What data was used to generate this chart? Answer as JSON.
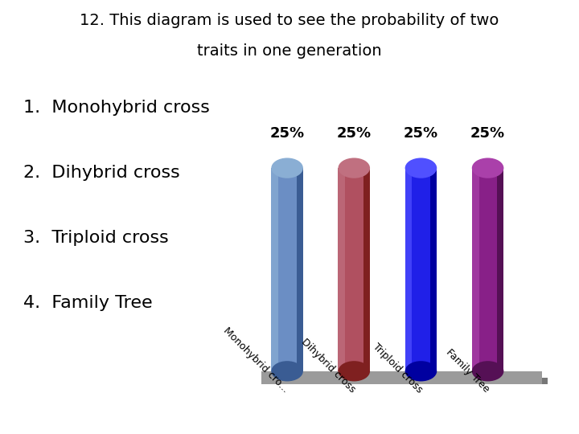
{
  "title_line1": "12. This diagram is used to see the probability of two",
  "title_line2": "traits in one generation",
  "categories": [
    "Monohybrid cro...",
    "Dihybrid cross",
    "Triploid cross",
    "Family Tree"
  ],
  "values": [
    25,
    25,
    25,
    25
  ],
  "bar_colors": [
    "#6B8EC4",
    "#B05060",
    "#2020E8",
    "#882088"
  ],
  "bar_light_colors": [
    "#8AAED4",
    "#C07080",
    "#5050FF",
    "#AA40AA"
  ],
  "bar_dark_colors": [
    "#3A5C93",
    "#7F2020",
    "#0000A0",
    "#551055"
  ],
  "value_labels": [
    "25%",
    "25%",
    "25%",
    "25%"
  ],
  "list_items": [
    "1.  Monohybrid cross",
    "2.  Dihybrid cross",
    "3.  Triploid cross",
    "4.  Family Tree"
  ],
  "background_color": "#ffffff",
  "floor_color": "#9B9B9B",
  "title_fontsize": 14,
  "label_fontsize": 13,
  "list_fontsize": 16,
  "tick_fontsize": 9
}
